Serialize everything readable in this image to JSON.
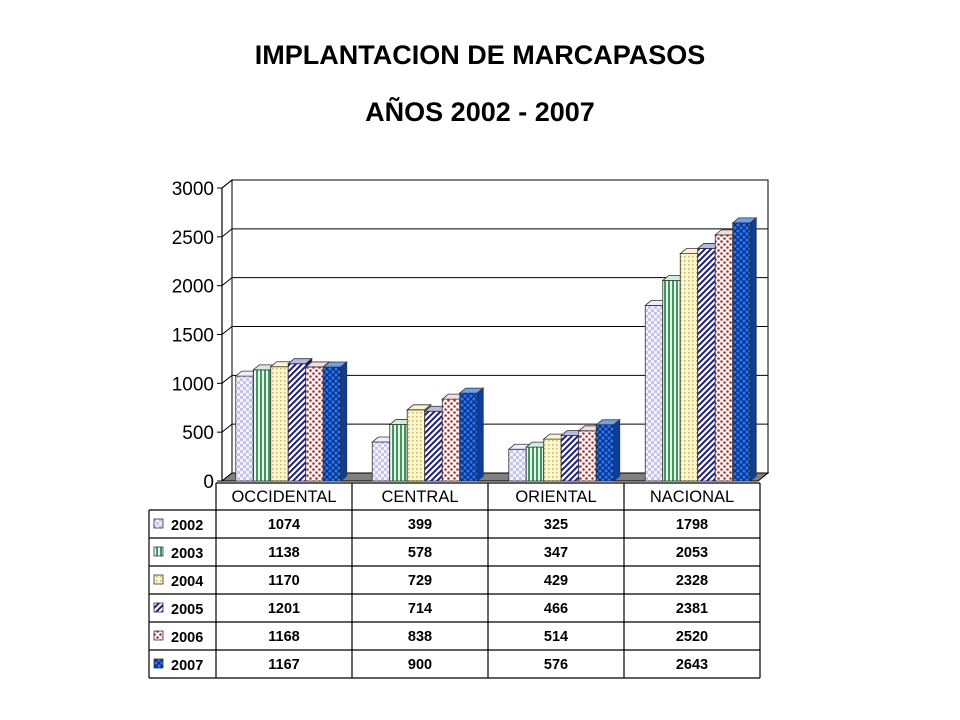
{
  "title": "IMPLANTACION  DE MARCAPASOS",
  "subtitle": "AÑOS 2002 - 2007",
  "chart_data": {
    "type": "bar",
    "title": "IMPLANTACION  DE MARCAPASOS",
    "subtitle": "AÑOS 2002 - 2007",
    "categories": [
      "OCCIDENTAL",
      "CENTRAL",
      "ORIENTAL",
      "NACIONAL"
    ],
    "ylim": [
      0,
      3000
    ],
    "yticks": [
      "0",
      "500",
      "1000",
      "1500",
      "2000",
      "2500",
      "3000"
    ],
    "grid": true,
    "legend_position": "left of data table",
    "series": [
      {
        "name": "2002",
        "values": [
          1074,
          399,
          325,
          1798
        ],
        "color": "#dcdcf8",
        "pattern": "checker"
      },
      {
        "name": "2003",
        "values": [
          1138,
          578,
          347,
          2053
        ],
        "color": "#a8dcb8",
        "pattern": "vertical"
      },
      {
        "name": "2004",
        "values": [
          1170,
          729,
          429,
          2328
        ],
        "color": "#f6eeb4",
        "pattern": "dotted"
      },
      {
        "name": "2005",
        "values": [
          1201,
          714,
          466,
          2381
        ],
        "color": "#8a8ad8",
        "pattern": "diagonal"
      },
      {
        "name": "2006",
        "values": [
          1168,
          838,
          514,
          2520
        ],
        "color": "#f2c8c8",
        "pattern": "polka"
      },
      {
        "name": "2007",
        "values": [
          1167,
          900,
          576,
          2643
        ],
        "color": "#2a6ef0",
        "pattern": "grid"
      }
    ],
    "table": {
      "rows": [
        {
          "label": "2002",
          "cells": [
            "1074",
            "399",
            "325",
            "1798"
          ]
        },
        {
          "label": "2003",
          "cells": [
            "1138",
            "578",
            "347",
            "2053"
          ]
        },
        {
          "label": "2004",
          "cells": [
            "1170",
            "729",
            "429",
            "2328"
          ]
        },
        {
          "label": "2005",
          "cells": [
            "1201",
            "714",
            "466",
            "2381"
          ]
        },
        {
          "label": "2006",
          "cells": [
            "1168",
            "838",
            "514",
            "2520"
          ]
        },
        {
          "label": "2007",
          "cells": [
            "1167",
            "900",
            "576",
            "2643"
          ]
        }
      ]
    }
  }
}
